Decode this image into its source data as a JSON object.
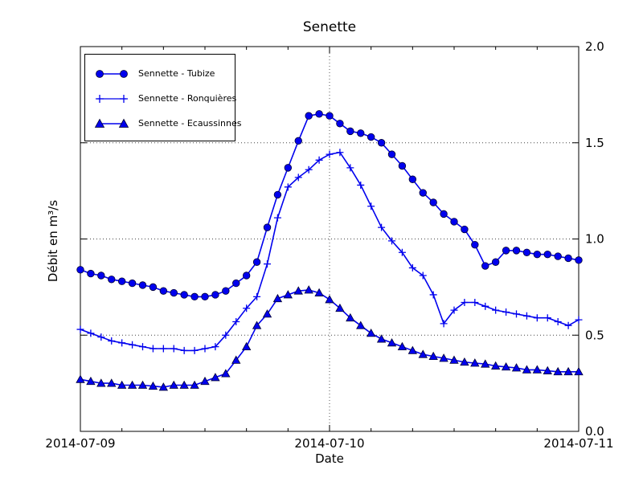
{
  "chart_data": {
    "type": "line",
    "title": "Senette",
    "xlabel": "Date",
    "ylabel": "Débit en m³/s",
    "ylim": [
      0.0,
      2.0
    ],
    "ytick_values": [
      0.0,
      0.5,
      1.0,
      1.5,
      2.0
    ],
    "ytick_labels": [
      "0.0",
      "0.5",
      "1.0",
      "1.5",
      "2.0"
    ],
    "ytick_label_side": "right",
    "xtick_labels": [
      "2014-07-09",
      "2014-07-10",
      "2014-07-11"
    ],
    "xtick_hours": [
      0,
      24,
      48
    ],
    "x_minor_tick_interval_hours": 4,
    "x_range_hours": [
      0,
      48
    ],
    "x_step_hours": 1,
    "grid_y_values": [
      0.5,
      1.0,
      1.5
    ],
    "grid_x_hours": [
      24
    ],
    "grid_style": "dotted",
    "line_color": "#0000ee",
    "marker_edge_color": "#000033",
    "legend_position": "upper left",
    "series": [
      {
        "name": "Sennette - Tubize",
        "marker": "circle",
        "values": [
          0.84,
          0.82,
          0.81,
          0.79,
          0.78,
          0.77,
          0.76,
          0.75,
          0.73,
          0.72,
          0.71,
          0.7,
          0.7,
          0.71,
          0.73,
          0.77,
          0.81,
          0.88,
          1.06,
          1.23,
          1.37,
          1.51,
          1.64,
          1.65,
          1.64,
          1.6,
          1.56,
          1.55,
          1.53,
          1.5,
          1.44,
          1.38,
          1.31,
          1.24,
          1.19,
          1.13,
          1.09,
          1.05,
          0.97,
          0.86,
          0.88,
          0.94,
          0.94,
          0.93,
          0.92,
          0.92,
          0.91,
          0.9,
          0.89
        ]
      },
      {
        "name": "Sennette - Ronquières",
        "marker": "plus",
        "values": [
          0.53,
          0.51,
          0.49,
          0.47,
          0.46,
          0.45,
          0.44,
          0.43,
          0.43,
          0.43,
          0.42,
          0.42,
          0.43,
          0.44,
          0.5,
          0.57,
          0.64,
          0.7,
          0.87,
          1.11,
          1.27,
          1.32,
          1.36,
          1.41,
          1.44,
          1.45,
          1.37,
          1.28,
          1.17,
          1.06,
          0.99,
          0.93,
          0.85,
          0.81,
          0.71,
          0.56,
          0.63,
          0.67,
          0.67,
          0.65,
          0.63,
          0.62,
          0.61,
          0.6,
          0.59,
          0.59,
          0.57,
          0.55,
          0.58
        ]
      },
      {
        "name": "Sennette - Ecaussinnes",
        "marker": "triangle",
        "values": [
          0.27,
          0.26,
          0.25,
          0.25,
          0.24,
          0.24,
          0.24,
          0.235,
          0.23,
          0.24,
          0.24,
          0.24,
          0.26,
          0.28,
          0.3,
          0.37,
          0.44,
          0.55,
          0.61,
          0.69,
          0.71,
          0.73,
          0.735,
          0.72,
          0.685,
          0.64,
          0.59,
          0.55,
          0.51,
          0.48,
          0.46,
          0.44,
          0.42,
          0.4,
          0.39,
          0.38,
          0.37,
          0.36,
          0.355,
          0.35,
          0.34,
          0.335,
          0.33,
          0.32,
          0.32,
          0.315,
          0.31,
          0.31,
          0.31
        ]
      }
    ]
  }
}
